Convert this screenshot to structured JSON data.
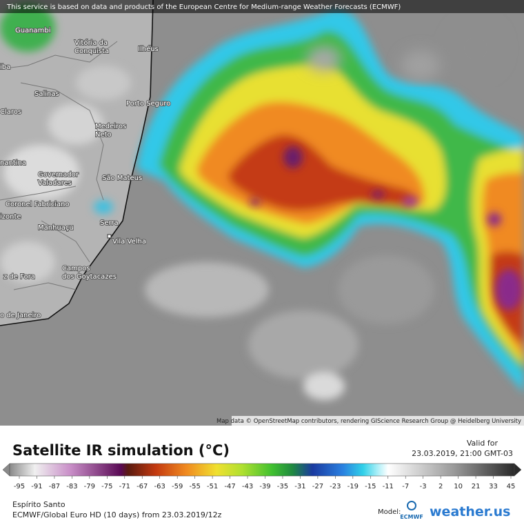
{
  "header": {
    "notice": "This service is based on data and products of the European Centre for Medium-range Weather Forecasts (ECMWF)"
  },
  "map": {
    "places": [
      {
        "lines": [
          "Guanambi"
        ]
      },
      {
        "lines": [
          "Vitória da",
          "Conquista"
        ]
      },
      {
        "lines": [
          "Ilhéus"
        ]
      },
      {
        "lines": [
          "iba"
        ]
      },
      {
        "lines": [
          "Salinas"
        ]
      },
      {
        "lines": [
          "Porto Seguro"
        ]
      },
      {
        "lines": [
          "Claros"
        ]
      },
      {
        "lines": [
          "Medeiros",
          "Neto"
        ]
      },
      {
        "lines": [
          "nantina"
        ]
      },
      {
        "lines": [
          "Governador",
          "Valadares"
        ]
      },
      {
        "lines": [
          "São Mateus"
        ]
      },
      {
        "lines": [
          "Coronel Fabriciano"
        ]
      },
      {
        "lines": [
          "izonte"
        ]
      },
      {
        "lines": [
          "Serra"
        ]
      },
      {
        "lines": [
          "Manhuaçu"
        ]
      },
      {
        "lines": [
          "Vila Velha"
        ]
      },
      {
        "lines": [
          "Campos",
          "dos Goytacazes"
        ]
      },
      {
        "lines": [
          "z de Fora"
        ]
      },
      {
        "lines": [
          "o de Janeiro"
        ]
      }
    ],
    "attribution": "Map data © OpenStreetMap contributors, rendering GIScience Research Group @ Heidelberg University"
  },
  "footer": {
    "title": "Satellite IR simulation (°C)",
    "valid_label": "Valid for",
    "valid_time": "23.03.2019, 21:00 GMT-03",
    "scale": [
      -95,
      -91,
      -87,
      -83,
      -79,
      -75,
      -71,
      -67,
      -63,
      -59,
      -55,
      -51,
      -47,
      -43,
      -39,
      -35,
      -31,
      -27,
      -23,
      -19,
      -15,
      -11,
      -7,
      -3,
      2,
      10,
      21,
      33,
      45
    ],
    "region": "Espírito Santo",
    "model_run": "ECMWF/Global Euro HD (10 days) from 23.03.2019/12z",
    "model_label": "Model:",
    "model_logo": "ECMWF",
    "brand": "weather.us"
  }
}
